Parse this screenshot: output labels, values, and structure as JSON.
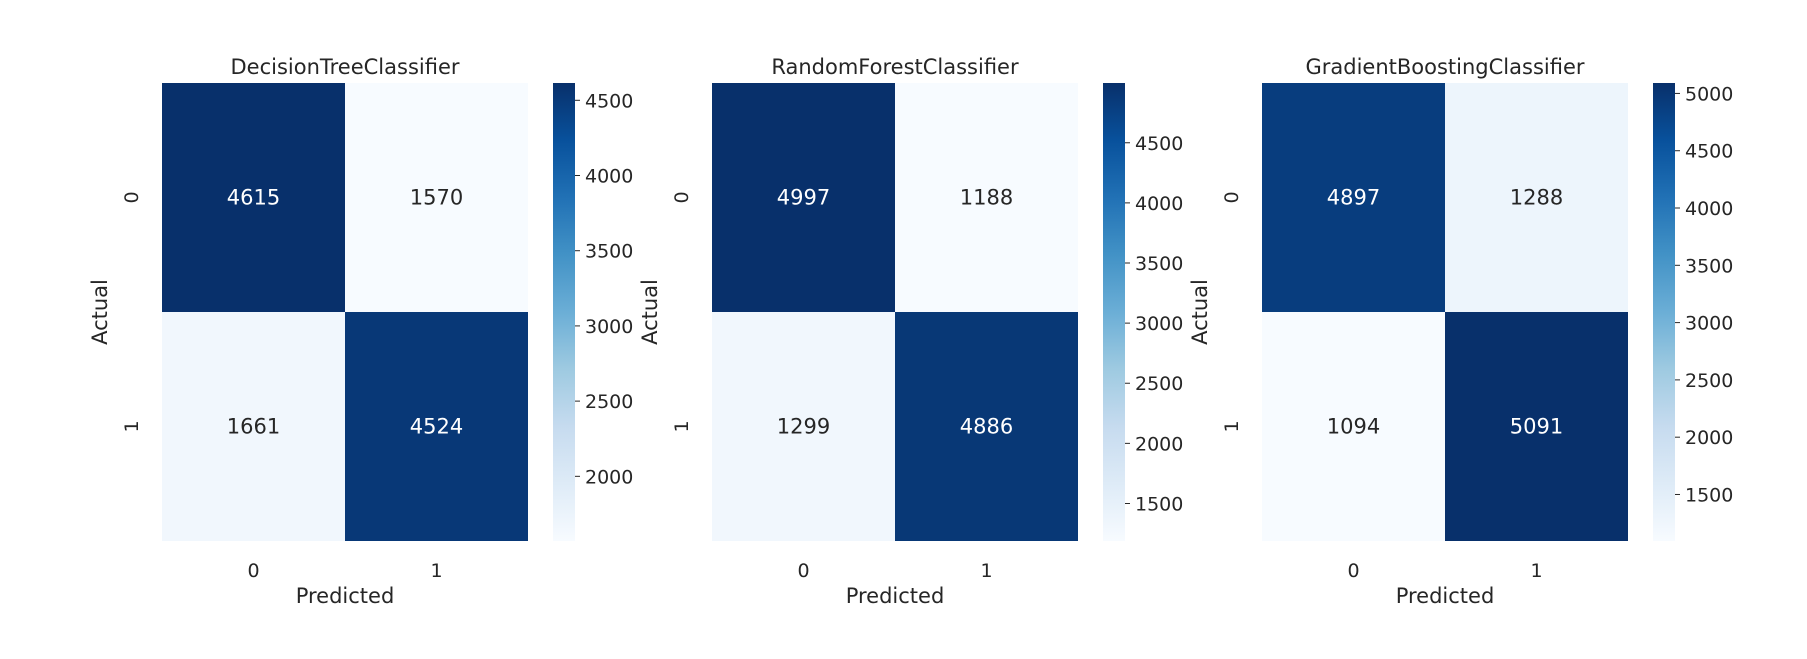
{
  "chart_data": [
    {
      "type": "heatmap",
      "title": "DecisionTreeClassifier",
      "xlabel": "Predicted",
      "ylabel": "Actual",
      "x_categories": [
        "0",
        "1"
      ],
      "y_categories": [
        "0",
        "1"
      ],
      "values": [
        [
          4615,
          1570
        ],
        [
          1661,
          4524
        ]
      ],
      "colormap": "Blues",
      "colorbar": {
        "min": 1570,
        "max": 4615,
        "ticks": [
          2000,
          2500,
          3000,
          3500,
          4000,
          4500
        ]
      }
    },
    {
      "type": "heatmap",
      "title": "RandomForestClassifier",
      "xlabel": "Predicted",
      "ylabel": "Actual",
      "x_categories": [
        "0",
        "1"
      ],
      "y_categories": [
        "0",
        "1"
      ],
      "values": [
        [
          4997,
          1188
        ],
        [
          1299,
          4886
        ]
      ],
      "colormap": "Blues",
      "colorbar": {
        "min": 1188,
        "max": 4997,
        "ticks": [
          1500,
          2000,
          2500,
          3000,
          3500,
          4000,
          4500
        ]
      }
    },
    {
      "type": "heatmap",
      "title": "GradientBoostingClassifier",
      "xlabel": "Predicted",
      "ylabel": "Actual",
      "x_categories": [
        "0",
        "1"
      ],
      "y_categories": [
        "0",
        "1"
      ],
      "values": [
        [
          4897,
          1288
        ],
        [
          1094,
          5091
        ]
      ],
      "colormap": "Blues",
      "colorbar": {
        "min": 1094,
        "max": 5091,
        "ticks": [
          1500,
          2000,
          2500,
          3000,
          3500,
          4000,
          4500,
          5000
        ]
      }
    }
  ]
}
